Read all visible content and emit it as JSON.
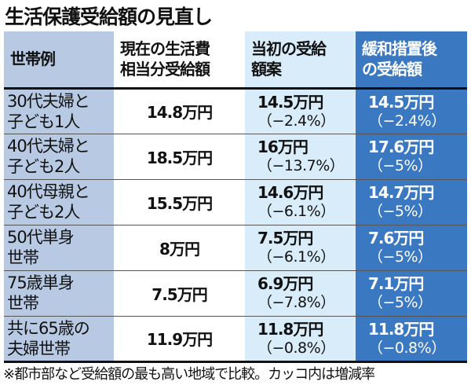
{
  "title": "生活保護受給額の見直し",
  "headers": [
    "世帯例",
    "現在の生活費\n相当分受給額",
    "当初の受給\n額案",
    "緩和措置後\nの受給額"
  ],
  "rows": [
    {
      "household": "30代夫婦と子ども1人",
      "current": "14.8万円",
      "initial": "14.5万円",
      "initial_change": "（−2.4%）",
      "eased": "14.5万円",
      "eased_change": "（−2.4%）"
    },
    {
      "household": "40代夫婦と子ども2人",
      "current": "18.5万円",
      "initial": "16万円",
      "initial_change": "（−13.7%）",
      "eased": "17.6万円",
      "eased_change": "（−5%）"
    },
    {
      "household": "40代母親と子ども2人",
      "current": "15.5万円",
      "initial": "14.6万円",
      "initial_change": "（−6.1%）",
      "eased": "14.7万円",
      "eased_change": "（−5%）"
    },
    {
      "household": "50代単身世帯",
      "current": "8万円",
      "initial": "7.5万円",
      "initial_change": "（−6.1%）",
      "eased": "7.6万円",
      "eased_change": "（−5%）"
    },
    {
      "household": "75歳単身世帯",
      "current": "7.5万円",
      "initial": "6.9万円",
      "initial_change": "（−7.8%）",
      "eased": "7.1万円",
      "eased_change": "（−5%）"
    },
    {
      "household": "共に65歳の夫婦世帯",
      "current": "11.9万円",
      "initial": "11.8万円",
      "initial_change": "（−0.8%）",
      "eased": "11.8万円",
      "eased_change": "（−0.8%）"
    }
  ],
  "household_lines": [
    [
      "30代夫婦と",
      "子ども1人"
    ],
    [
      "40代夫婦と",
      "子ども2人"
    ],
    [
      "40代母親と",
      "子ども2人"
    ],
    [
      "50代単身",
      "世帯"
    ],
    [
      "75歳単身",
      "世帯"
    ],
    [
      "共に65歳の",
      "夫婦世帯"
    ]
  ],
  "footnote": "※都市部など受給額の最も高い地域で比較。カッコ内は増減率",
  "colors": {
    "col_household": "#b8cae3",
    "col_initial": "#d9ecfa",
    "col_eased": "#3b78c2"
  }
}
